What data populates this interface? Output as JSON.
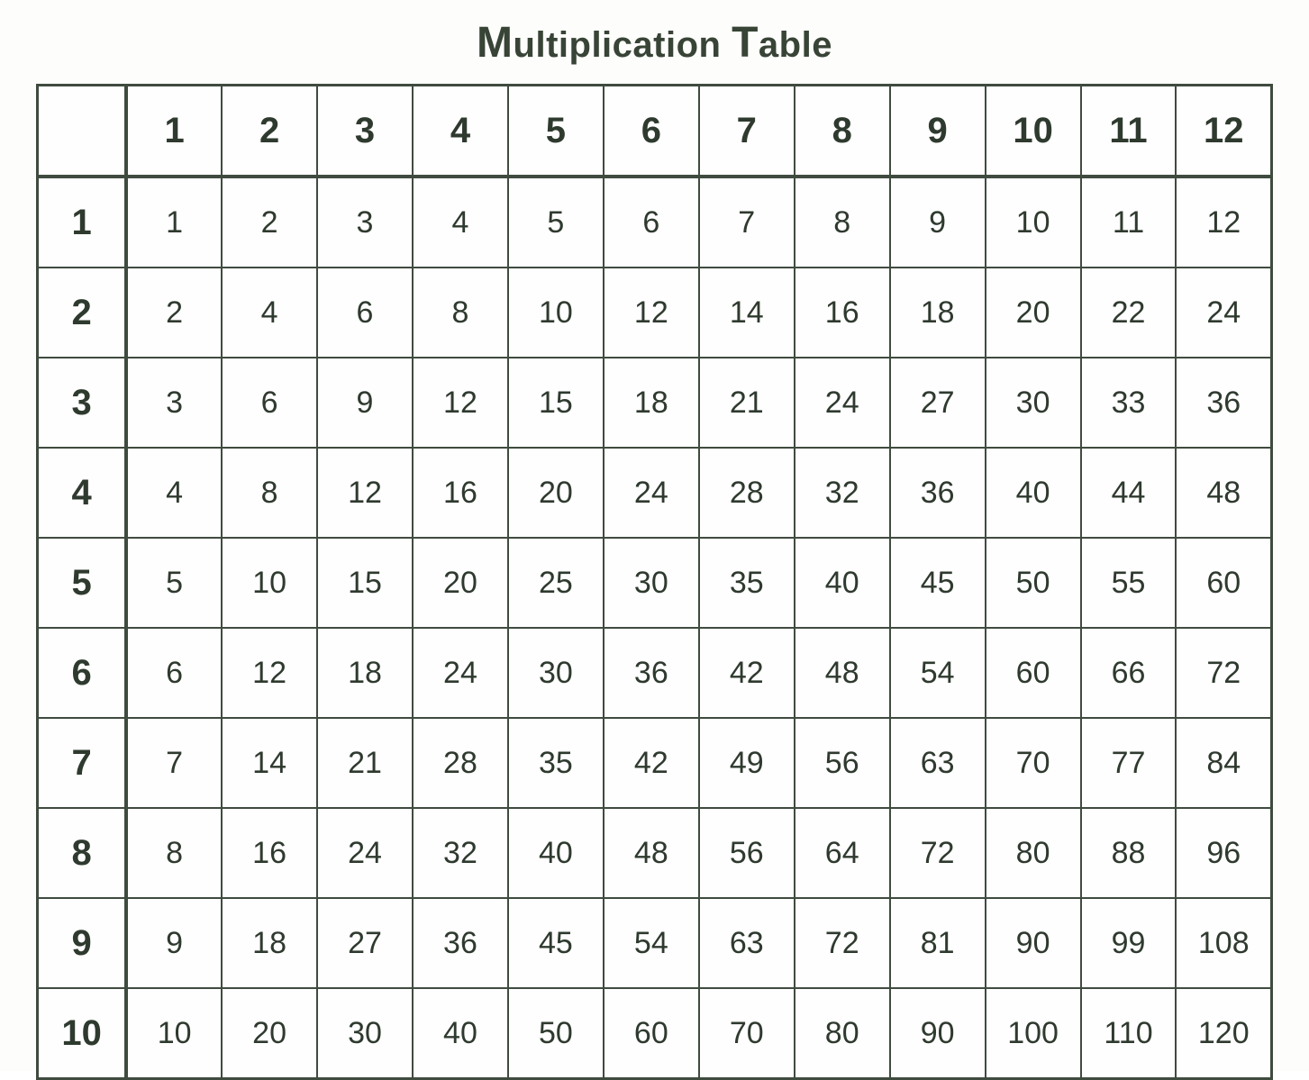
{
  "title_parts": [
    "M",
    "ultiplication ",
    "T",
    "able"
  ],
  "table": {
    "type": "table",
    "columns": [
      "1",
      "2",
      "3",
      "4",
      "5",
      "6",
      "7",
      "8",
      "9",
      "10",
      "11",
      "12"
    ],
    "row_headers": [
      "1",
      "2",
      "3",
      "4",
      "5",
      "6",
      "7",
      "8",
      "9",
      "10"
    ],
    "rows": [
      [
        "1",
        "2",
        "3",
        "4",
        "5",
        "6",
        "7",
        "8",
        "9",
        "10",
        "11",
        "12"
      ],
      [
        "2",
        "4",
        "6",
        "8",
        "10",
        "12",
        "14",
        "16",
        "18",
        "20",
        "22",
        "24"
      ],
      [
        "3",
        "6",
        "9",
        "12",
        "15",
        "18",
        "21",
        "24",
        "27",
        "30",
        "33",
        "36"
      ],
      [
        "4",
        "8",
        "12",
        "16",
        "20",
        "24",
        "28",
        "32",
        "36",
        "40",
        "44",
        "48"
      ],
      [
        "5",
        "10",
        "15",
        "20",
        "25",
        "30",
        "35",
        "40",
        "45",
        "50",
        "55",
        "60"
      ],
      [
        "6",
        "12",
        "18",
        "24",
        "30",
        "36",
        "42",
        "48",
        "54",
        "60",
        "66",
        "72"
      ],
      [
        "7",
        "14",
        "21",
        "28",
        "35",
        "42",
        "49",
        "56",
        "63",
        "70",
        "77",
        "84"
      ],
      [
        "8",
        "16",
        "24",
        "32",
        "40",
        "48",
        "56",
        "64",
        "72",
        "80",
        "88",
        "96"
      ],
      [
        "9",
        "18",
        "27",
        "36",
        "45",
        "54",
        "63",
        "72",
        "81",
        "90",
        "99",
        "108"
      ],
      [
        "10",
        "20",
        "30",
        "40",
        "50",
        "60",
        "70",
        "80",
        "90",
        "100",
        "110",
        "120"
      ]
    ],
    "border_color": "#3f4b3f",
    "background_color": "#ffffff",
    "header_fontsize": 40,
    "cell_fontsize": 34,
    "header_fontweight": 900,
    "cell_fontweight": 400,
    "text_color": "#2f3a2f"
  },
  "page_background": "#fdfdfb",
  "title_fontsize": 40,
  "title_bigcap_fontsize": 48,
  "title_color": "#384436"
}
